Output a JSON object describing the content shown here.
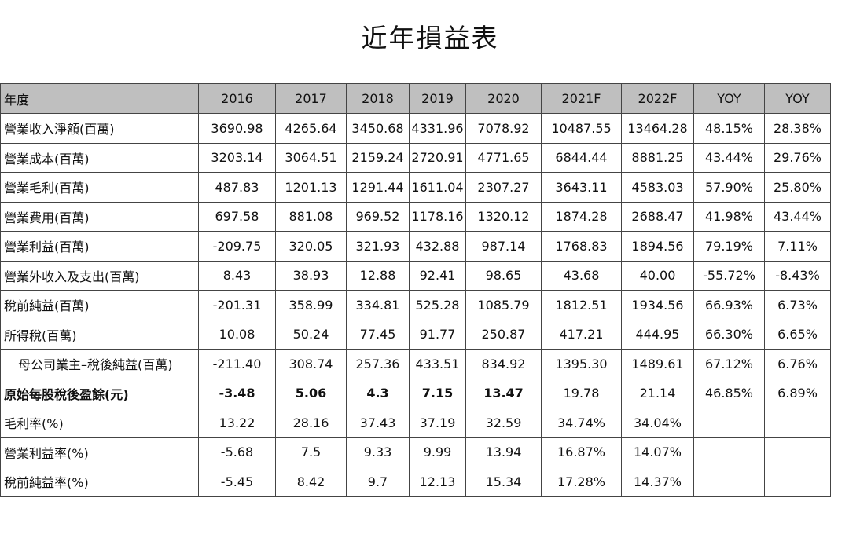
{
  "title": "近年損益表",
  "table": {
    "headers": [
      "年度",
      "2016",
      "2017",
      "2018",
      "2019",
      "2020",
      "2021F",
      "2022F",
      "YOY",
      "YOY"
    ],
    "rows": [
      {
        "label": "營業收入淨額(百萬)",
        "values": [
          "3690.98",
          "4265.64",
          "3450.68",
          "4331.96",
          "7078.92",
          "10487.55",
          "13464.28",
          "48.15%",
          "28.38%"
        ]
      },
      {
        "label": "營業成本(百萬)",
        "values": [
          "3203.14",
          "3064.51",
          "2159.24",
          "2720.91",
          "4771.65",
          "6844.44",
          "8881.25",
          "43.44%",
          "29.76%"
        ]
      },
      {
        "label": "營業毛利(百萬)",
        "values": [
          "487.83",
          "1201.13",
          "1291.44",
          "1611.04",
          "2307.27",
          "3643.11",
          "4583.03",
          "57.90%",
          "25.80%"
        ]
      },
      {
        "label": "營業費用(百萬)",
        "values": [
          "697.58",
          "881.08",
          "969.52",
          "1178.16",
          "1320.12",
          "1874.28",
          "2688.47",
          "41.98%",
          "43.44%"
        ]
      },
      {
        "label": "營業利益(百萬)",
        "values": [
          "-209.75",
          "320.05",
          "321.93",
          "432.88",
          "987.14",
          "1768.83",
          "1894.56",
          "79.19%",
          "7.11%"
        ]
      },
      {
        "label": "營業外收入及支出(百萬)",
        "values": [
          "8.43",
          "38.93",
          "12.88",
          "92.41",
          "98.65",
          "43.68",
          "40.00",
          "-55.72%",
          "-8.43%"
        ]
      },
      {
        "label": "稅前純益(百萬)",
        "values": [
          "-201.31",
          "358.99",
          "334.81",
          "525.28",
          "1085.79",
          "1812.51",
          "1934.56",
          "66.93%",
          "6.73%"
        ]
      },
      {
        "label": "所得稅(百萬)",
        "values": [
          "10.08",
          "50.24",
          "77.45",
          "91.77",
          "250.87",
          "417.21",
          "444.95",
          "66.30%",
          "6.65%"
        ]
      },
      {
        "label": "母公司業主–稅後純益(百萬)",
        "values": [
          "-211.40",
          "308.74",
          "257.36",
          "433.51",
          "834.92",
          "1395.30",
          "1489.61",
          "67.12%",
          "6.76%"
        ]
      },
      {
        "label": "原始每股稅後盈餘(元)",
        "values": [
          "-3.48",
          "5.06",
          "4.3",
          "7.15",
          "13.47",
          "19.78",
          "21.14",
          "46.85%",
          "6.89%"
        ]
      },
      {
        "label": "毛利率(%)",
        "values": [
          "13.22",
          "28.16",
          "37.43",
          "37.19",
          "32.59",
          "34.74%",
          "34.04%",
          "",
          ""
        ]
      },
      {
        "label": "營業利益率(%)",
        "values": [
          "-5.68",
          "7.5",
          "9.33",
          "9.99",
          "13.94",
          "16.87%",
          "14.07%",
          "",
          ""
        ]
      },
      {
        "label": "稅前純益率(%)",
        "values": [
          "-5.45",
          "8.42",
          "9.7",
          "12.13",
          "15.34",
          "17.28%",
          "14.37%",
          "",
          ""
        ]
      }
    ]
  }
}
